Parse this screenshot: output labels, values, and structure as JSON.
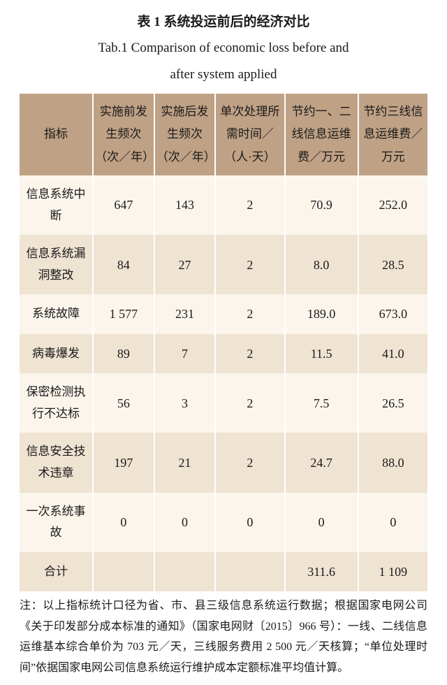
{
  "title": {
    "cn": "表 1 系统投运前后的经济对比",
    "en_line1": "Tab.1 Comparison of economic loss before and",
    "en_line2": "after system applied"
  },
  "table": {
    "header_bg": "#bfa185",
    "row_odd_bg": "#fbf5ec",
    "row_even_bg": "#efe3d2",
    "col_widths": [
      "18%",
      "15%",
      "15%",
      "17%",
      "18%",
      "17%"
    ],
    "columns": [
      "指标",
      "实施前发生频次（次／年）",
      "实施后发生频次（次／年）",
      "单次处理所需时间／（人·天）",
      "节约一、二线信息运维费／万元",
      "节约三线信息运维费／万元"
    ],
    "rows": [
      [
        "信息系统中断",
        "647",
        "143",
        "2",
        "70.9",
        "252.0"
      ],
      [
        "信息系统漏洞整改",
        "84",
        "27",
        "2",
        "8.0",
        "28.5"
      ],
      [
        "系统故障",
        "1 577",
        "231",
        "2",
        "189.0",
        "673.0"
      ],
      [
        "病毒爆发",
        "89",
        "7",
        "2",
        "11.5",
        "41.0"
      ],
      [
        "保密检测执行不达标",
        "56",
        "3",
        "2",
        "7.5",
        "26.5"
      ],
      [
        "信息安全技术违章",
        "197",
        "21",
        "2",
        "24.7",
        "88.0"
      ],
      [
        "一次系统事故",
        "0",
        "0",
        "0",
        "0",
        "0"
      ],
      [
        "合计",
        "",
        "",
        "",
        "311.6",
        "1 109"
      ]
    ]
  },
  "footnote": "注：以上指标统计口径为省、市、县三级信息系统运行数据；根据国家电网公司《关于印发部分成本标准的通知》（国家电网财〔2015〕966 号）：一线、二线信息运维基本综合单价为 703 元／天，三线服务费用 2 500 元／天核算；“单位处理时间”依据国家电网公司信息系统运行维护成本定额标准平均值计算。"
}
